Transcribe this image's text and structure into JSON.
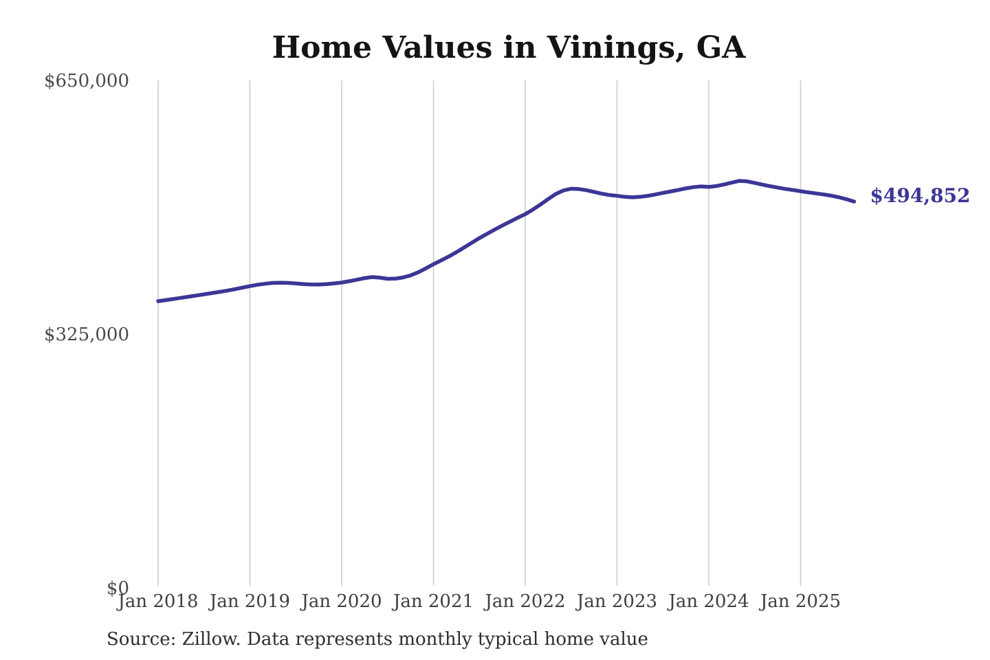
{
  "title": "Home Values in Vinings, GA",
  "source_note": "Source: Zillow. Data represents monthly typical home value",
  "colors": {
    "line": "#3b3696",
    "final_label": "#3b3696",
    "grid": "#c9c9c9",
    "axis_text": "#3f3f3f",
    "title_text": "#141414",
    "background": "#ffffff"
  },
  "chart_data": {
    "type": "line",
    "title": "Home Values in Vinings, GA",
    "ylabel": "",
    "xlabel": "",
    "ylim": [
      0,
      650000
    ],
    "grid": "vertical-only",
    "legend": "none",
    "unit": "USD",
    "frequency": "monthly",
    "y_ticks": [
      {
        "value": 0,
        "label": "$0"
      },
      {
        "value": 325000,
        "label": "$325,000"
      },
      {
        "value": 650000,
        "label": "$650,000"
      }
    ],
    "x_ticks": [
      {
        "month_index": 0,
        "label": "Jan 2018"
      },
      {
        "month_index": 12,
        "label": "Jan 2019"
      },
      {
        "month_index": 24,
        "label": "Jan 2020"
      },
      {
        "month_index": 36,
        "label": "Jan 2021"
      },
      {
        "month_index": 48,
        "label": "Jan 2022"
      },
      {
        "month_index": 60,
        "label": "Jan 2023"
      },
      {
        "month_index": 72,
        "label": "Jan 2024"
      },
      {
        "month_index": 84,
        "label": "Jan 2025"
      }
    ],
    "x": [
      "2018-01",
      "2018-02",
      "2018-03",
      "2018-04",
      "2018-05",
      "2018-06",
      "2018-07",
      "2018-08",
      "2018-09",
      "2018-10",
      "2018-11",
      "2018-12",
      "2019-01",
      "2019-02",
      "2019-03",
      "2019-04",
      "2019-05",
      "2019-06",
      "2019-07",
      "2019-08",
      "2019-09",
      "2019-10",
      "2019-11",
      "2019-12",
      "2020-01",
      "2020-02",
      "2020-03",
      "2020-04",
      "2020-05",
      "2020-06",
      "2020-07",
      "2020-08",
      "2020-09",
      "2020-10",
      "2020-11",
      "2020-12",
      "2021-01",
      "2021-02",
      "2021-03",
      "2021-04",
      "2021-05",
      "2021-06",
      "2021-07",
      "2021-08",
      "2021-09",
      "2021-10",
      "2021-11",
      "2021-12",
      "2022-01",
      "2022-02",
      "2022-03",
      "2022-04",
      "2022-05",
      "2022-06",
      "2022-07",
      "2022-08",
      "2022-09",
      "2022-10",
      "2022-11",
      "2022-12",
      "2023-01",
      "2023-02",
      "2023-03",
      "2023-04",
      "2023-05",
      "2023-06",
      "2023-07",
      "2023-08",
      "2023-09",
      "2023-10",
      "2023-11",
      "2023-12",
      "2024-01",
      "2024-02",
      "2024-03",
      "2024-04",
      "2024-05",
      "2024-06",
      "2024-07",
      "2024-08",
      "2024-09",
      "2024-10",
      "2024-11",
      "2024-12",
      "2025-01",
      "2025-02",
      "2025-03",
      "2025-04",
      "2025-05",
      "2025-06",
      "2025-07",
      "2025-08"
    ],
    "values": [
      367200,
      368600,
      370000,
      371500,
      373000,
      374500,
      376000,
      377500,
      379100,
      380700,
      382500,
      384500,
      386500,
      388200,
      389600,
      390600,
      390900,
      390600,
      389900,
      389100,
      388600,
      388500,
      389100,
      390000,
      391100,
      392800,
      394800,
      396800,
      398100,
      397300,
      395900,
      396100,
      397600,
      400200,
      404200,
      409200,
      414600,
      419400,
      424400,
      430000,
      436000,
      442000,
      448000,
      453500,
      458900,
      464100,
      469100,
      474000,
      478700,
      484600,
      491100,
      498100,
      504600,
      509100,
      511300,
      510800,
      509300,
      507100,
      504900,
      503200,
      502200,
      500900,
      500300,
      500900,
      502100,
      503900,
      505900,
      507800,
      509700,
      511700,
      513300,
      514300,
      513600,
      514700,
      516700,
      519100,
      521300,
      520700,
      518700,
      516500,
      514500,
      512800,
      511000,
      509600,
      508100,
      506600,
      505300,
      504000,
      502400,
      500400,
      497800,
      494852
    ],
    "final_value": 494852,
    "final_value_label": "$494,852"
  }
}
